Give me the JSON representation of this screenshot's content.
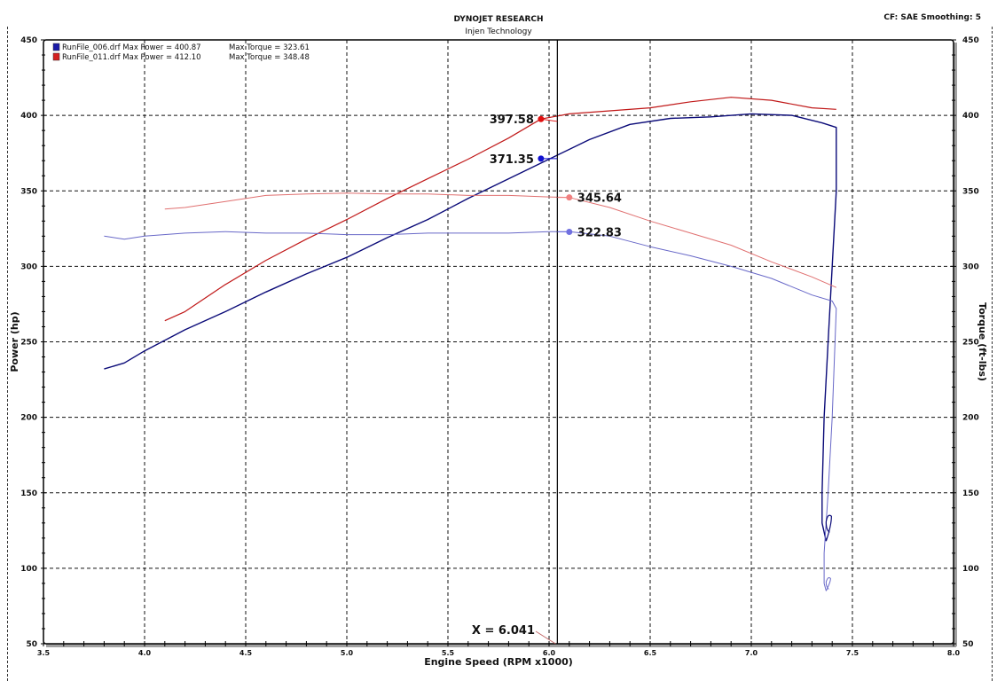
{
  "header": {
    "title": "DYNOJET RESEARCH",
    "subtitle": "Injen Technology",
    "settings": "CF: SAE  Smoothing: 5"
  },
  "legend": [
    {
      "file": "RunFile_006.drf",
      "max_power_label": "Max Power = 400.87",
      "max_torque_label": "Max Torque = 323.61",
      "color": "#1a1aa8"
    },
    {
      "file": "RunFile_011.drf",
      "max_power_label": "Max Power = 412.10",
      "max_torque_label": "Max Torque = 348.48",
      "color": "#d42020"
    }
  ],
  "cursor": {
    "label": "X = 6.041",
    "x": 6.041
  },
  "markers": [
    {
      "label": "397.58",
      "series": "RunFile_011 Power",
      "color": "#e01010"
    },
    {
      "label": "371.35",
      "series": "RunFile_006 Power",
      "color": "#1010d0"
    },
    {
      "label": "345.64",
      "series": "RunFile_011 Torque",
      "color": "#f08080"
    },
    {
      "label": "322.83",
      "series": "RunFile_006 Torque",
      "color": "#7070e0"
    }
  ],
  "colors": {
    "power_006": "#0a0a78",
    "power_011": "#c01818",
    "torque_006": "#6868c8",
    "torque_011": "#e07070",
    "grid": "#111111",
    "frame_shadow": "#a0a0a0"
  },
  "chart_data": {
    "type": "line",
    "title": "DYNOJET RESEARCH",
    "subtitle": "Injen Technology",
    "xlabel": "Engine Speed (RPM x1000)",
    "ylabel": "Power (hp)",
    "y2label": "Torque (ft-lbs)",
    "xlim": [
      3.5,
      8.0
    ],
    "ylim": [
      50,
      450
    ],
    "y2lim": [
      50,
      450
    ],
    "xticks": [
      "3.5",
      "4.0",
      "4.5",
      "5.0",
      "5.5",
      "6.0",
      "6.5",
      "7.0",
      "7.5",
      "8.0"
    ],
    "yticks": [
      "50",
      "100",
      "150",
      "200",
      "250",
      "300",
      "350",
      "400",
      "450"
    ],
    "grid": true,
    "legend_position": "top-left",
    "series": [
      {
        "name": "RunFile_006.drf Power",
        "axis": "left",
        "x": [
          3.8,
          3.9,
          4.0,
          4.2,
          4.4,
          4.6,
          4.8,
          5.0,
          5.2,
          5.4,
          5.6,
          5.8,
          6.0,
          6.2,
          6.4,
          6.6,
          6.8,
          7.0,
          7.2,
          7.35,
          7.42,
          7.42,
          7.4,
          7.38,
          7.36,
          7.35,
          7.35,
          7.37
        ],
        "values": [
          232,
          236,
          244,
          258,
          270,
          283,
          295,
          306,
          319,
          331,
          345,
          358,
          371,
          384,
          394,
          398,
          399,
          401,
          400,
          395,
          392,
          350,
          300,
          250,
          200,
          150,
          130,
          118
        ]
      },
      {
        "name": "RunFile_011.drf Power",
        "axis": "left",
        "x": [
          4.1,
          4.2,
          4.4,
          4.6,
          4.8,
          5.0,
          5.2,
          5.4,
          5.6,
          5.8,
          5.96,
          6.1,
          6.3,
          6.5,
          6.7,
          6.9,
          7.1,
          7.3,
          7.42
        ],
        "values": [
          264,
          270,
          288,
          304,
          318,
          331,
          345,
          358,
          371,
          385,
          397.58,
          401,
          403,
          405,
          409,
          412,
          410,
          405,
          404
        ]
      },
      {
        "name": "RunFile_006.drf Torque",
        "axis": "right",
        "x": [
          3.8,
          3.9,
          4.0,
          4.2,
          4.4,
          4.6,
          4.8,
          5.0,
          5.2,
          5.4,
          5.6,
          5.8,
          6.0,
          6.1,
          6.3,
          6.5,
          6.7,
          6.9,
          7.1,
          7.3,
          7.4,
          7.42,
          7.4,
          7.38,
          7.36,
          7.36,
          7.37
        ],
        "values": [
          320,
          318,
          320,
          322,
          323,
          322,
          322,
          321,
          321,
          322,
          322,
          322,
          323,
          323,
          320,
          313,
          307,
          300,
          292,
          281,
          277,
          272,
          200,
          150,
          110,
          90,
          85
        ]
      },
      {
        "name": "RunFile_011.drf Torque",
        "axis": "right",
        "x": [
          4.1,
          4.2,
          4.4,
          4.6,
          4.8,
          5.0,
          5.2,
          5.4,
          5.6,
          5.8,
          6.0,
          6.1,
          6.3,
          6.5,
          6.7,
          6.9,
          7.1,
          7.3,
          7.42
        ],
        "values": [
          338,
          339,
          343,
          347,
          348,
          348.5,
          348,
          348,
          347,
          347,
          346,
          345.64,
          339,
          330,
          322,
          314,
          303,
          293,
          286
        ]
      }
    ],
    "annotations": [
      {
        "text": "397.58",
        "x": 5.96,
        "y": 397.58
      },
      {
        "text": "371.35",
        "x": 5.96,
        "y": 371.35
      },
      {
        "text": "345.64",
        "x": 6.1,
        "y": 345.64
      },
      {
        "text": "322.83",
        "x": 6.1,
        "y": 322.83
      },
      {
        "text": "X = 6.041",
        "x": 6.041,
        "y": 55
      }
    ]
  }
}
